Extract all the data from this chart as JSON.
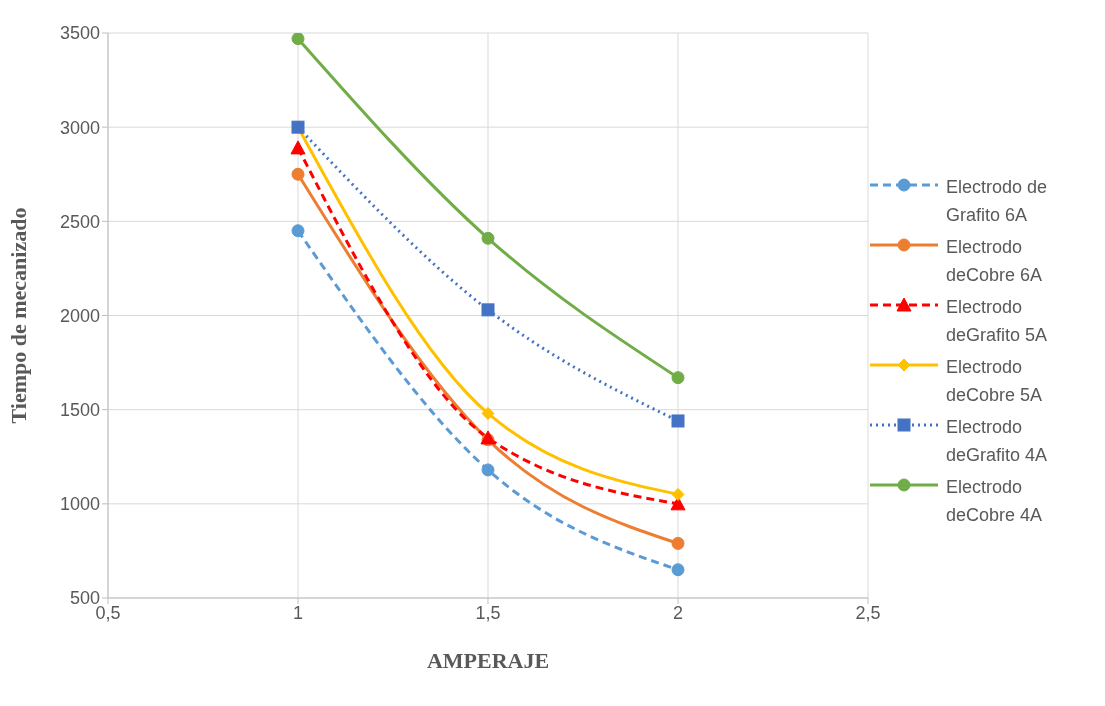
{
  "chart_data": {
    "type": "line",
    "xlabel": "AMPERAJE",
    "ylabel": "Tiempo de mecanizado",
    "x": [
      1,
      1.5,
      2
    ],
    "xlim": [
      0.5,
      2.5
    ],
    "xticks": [
      {
        "value": 0.5,
        "label": "0,5"
      },
      1,
      {
        "value": 1.5,
        "label": "1,5"
      },
      2,
      {
        "value": 2.5,
        "label": "2,5"
      }
    ],
    "ylim": [
      500,
      3500
    ],
    "yticks": [
      500,
      1000,
      1500,
      2000,
      2500,
      3000,
      3500
    ],
    "grid": true,
    "legend": "right",
    "series": [
      {
        "name": "Electrodo de Grafito 6A",
        "color": "#5b9bd5",
        "values": [
          2450,
          1180,
          650
        ],
        "marker": "circle",
        "line_style": "dashed"
      },
      {
        "name": "Electrodo deCobre 6A",
        "color": "#ed7d31",
        "values": [
          2750,
          1340,
          790
        ],
        "marker": "circle",
        "line_style": "solid"
      },
      {
        "name": "Electrodo deGrafito 5A",
        "color": "#ff0000",
        "values": [
          2890,
          1350,
          1000
        ],
        "marker": "triangle",
        "line_style": "dashed"
      },
      {
        "name": "Electrodo deCobre 5A",
        "color": "#ffc000",
        "values": [
          3000,
          1480,
          1050
        ],
        "marker": "diamond",
        "line_style": "solid"
      },
      {
        "name": "Electrodo deGrafito 4A",
        "color": "#4472c4",
        "values": [
          3000,
          2030,
          1440
        ],
        "marker": "square",
        "line_style": "dotted"
      },
      {
        "name": "Electrodo deCobre 4A",
        "color": "#70ad47",
        "values": [
          3470,
          2410,
          1670
        ],
        "marker": "circle",
        "line_style": "solid"
      }
    ]
  }
}
